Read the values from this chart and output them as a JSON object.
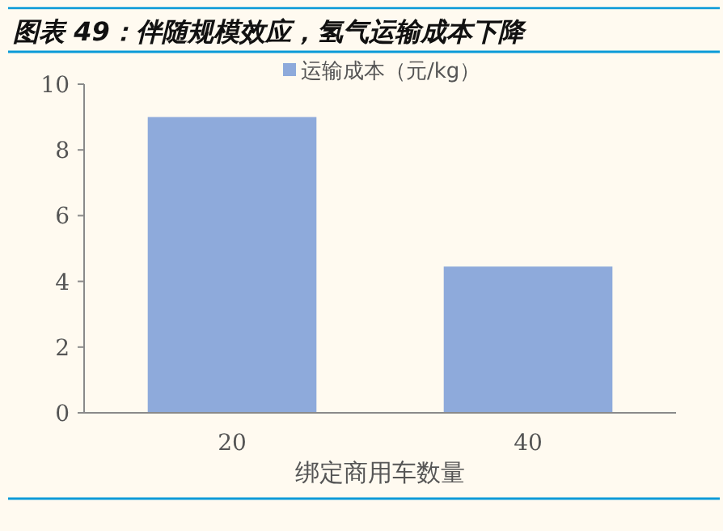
{
  "chart_data": {
    "type": "bar",
    "title": "图表 49：伴随规模效应，氢气运输成本下降",
    "xlabel": "绑定商用车数量",
    "categories": [
      "20",
      "40"
    ],
    "series": [
      {
        "name": "运输成本（元/kg）",
        "color": "#8eaadb",
        "values": [
          9,
          4.45
        ]
      }
    ],
    "ylim": [
      0,
      10
    ],
    "yticks": [
      0,
      2,
      4,
      6,
      8,
      10
    ],
    "grid": false,
    "legend": "top"
  }
}
